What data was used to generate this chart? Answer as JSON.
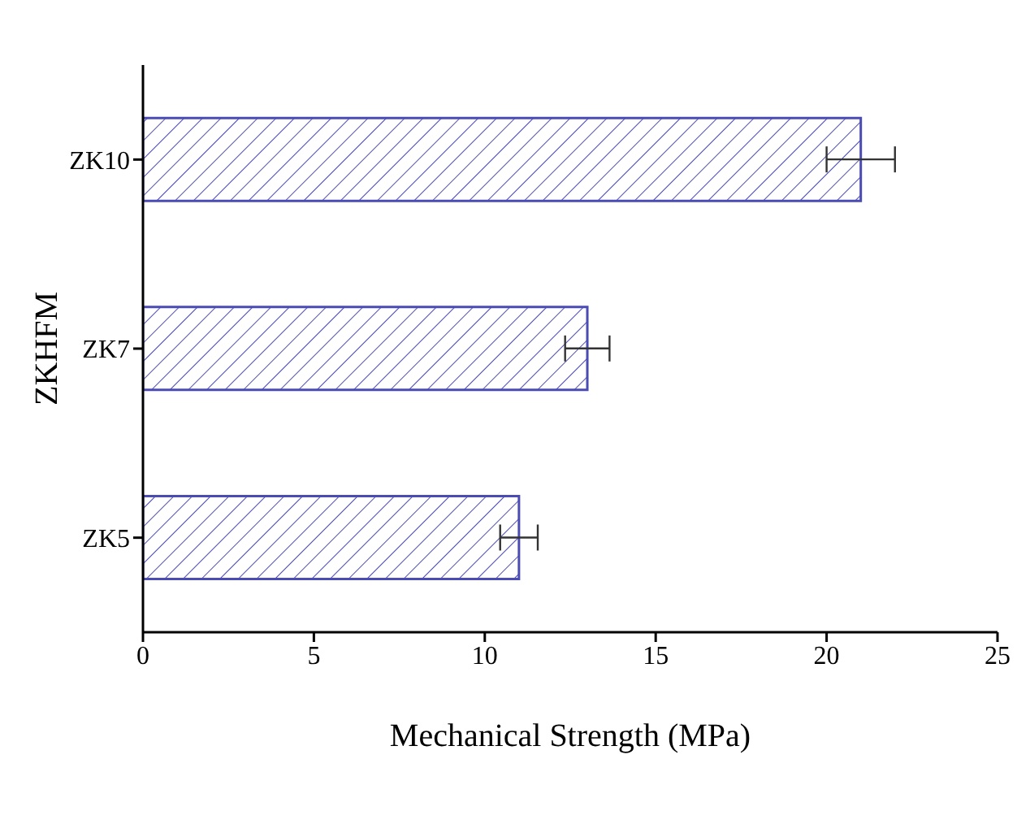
{
  "chart_data": {
    "type": "bar",
    "orientation": "horizontal",
    "xlabel": "Mechanical Strength (MPa)",
    "ylabel": "ZKHFM",
    "categories": [
      "ZK10",
      "ZK7",
      "ZK5"
    ],
    "values": [
      21,
      13,
      11
    ],
    "errors": [
      1,
      0.65,
      0.55
    ],
    "color": "#4b4bb4",
    "xlim": [
      0,
      25
    ],
    "xticks": [
      0,
      5,
      10,
      15,
      20,
      25
    ],
    "grid": false,
    "legend": false
  }
}
